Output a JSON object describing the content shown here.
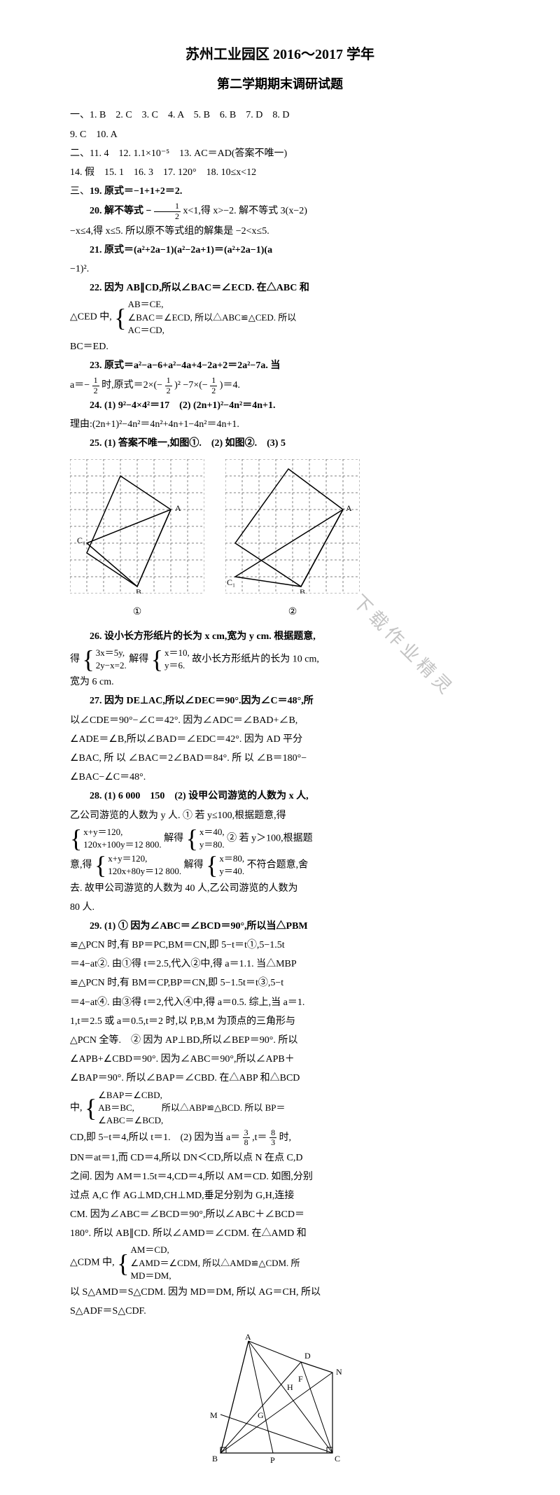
{
  "title": {
    "line1": "苏州工业园区 2016～2017 学年",
    "line2": "第二学期期末调研试题"
  },
  "watermark_text": "下载作业精灵",
  "section1": {
    "header": "一、",
    "answers": "1. B　2. C　3. C　4. A　5. B　6. B　7. D　8. D",
    "line2": "9. C　10. A"
  },
  "section2": {
    "header": "二、",
    "line1": "11. 4　12. 1.1×10⁻⁵　13. AC＝AD(答案不唯一)",
    "line2": "14. 假　15. 1　16. 3　17. 120°　18. 10≤x<12"
  },
  "section3_header": "三、",
  "q19": "19. 原式＝−1+1+2＝2.",
  "q20": {
    "line1_a": "20. 解不等式 − ",
    "line1_b": " x<1,得 x>−2. 解不等式 3(x−2)",
    "line2": "−x≤4,得 x≤5. 所以原不等式组的解集是 −2<x≤5."
  },
  "q21": {
    "line1": "21. 原式＝(a²+2a−1)(a²−2a+1)＝(a²+2a−1)(a",
    "line2": "−1)²."
  },
  "q22": {
    "line1": "22. 因为 AB∥CD,所以∠BAC＝∠ECD. 在△ABC 和",
    "brace_pre": "△CED 中,",
    "brace1": "AB＝CE,",
    "brace2": "∠BAC＝∠ECD, 所以△ABC≌△CED. 所以",
    "brace3": "AC＝CD,",
    "line3": "BC＝ED."
  },
  "q23": {
    "line1": "23. 原式＝a²−a−6+a²−4a+4−2a+2＝2a²−7a. 当",
    "line2_a": "a＝− ",
    "line2_b": " 时,原式＝2×(− ",
    "line2_c": ")² −7×(− ",
    "line2_d": ")＝4."
  },
  "q24": {
    "line1": "24. (1) 9²−4×4²＝17　(2) (2n+1)²−4n²＝4n+1.",
    "line2": "理由:(2n+1)²−4n²＝4n²+4n+1−4n²＝4n+1."
  },
  "q25": {
    "line1": "25. (1) 答案不唯一,如图①.　(2) 如图②.　(3) 5",
    "fig1_label": "①",
    "fig2_label": "②"
  },
  "q26": {
    "line1": "26. 设小长方形纸片的长为 x cm,宽为 y cm. 根据题意,",
    "line2_pre": "得",
    "brace1a": "3x＝5y,",
    "brace1b": "2y−x=2.",
    "line2_mid": " 解得",
    "brace2a": "x＝10,",
    "brace2b": "y＝6.",
    "line2_post": " 故小长方形纸片的长为 10 cm,",
    "line3": "宽为 6 cm."
  },
  "q27": {
    "line1": "27. 因为 DE⊥AC,所以∠DEC＝90°.因为∠C＝48°,所",
    "line2": "以∠CDE＝90°−∠C＝42°. 因为∠ADC＝∠BAD+∠B,",
    "line3": "∠ADE＝∠B,所以∠BAD＝∠EDC＝42°. 因为 AD 平分",
    "line4": "∠BAC, 所 以 ∠BAC＝2∠BAD＝84°. 所 以 ∠B＝180°−",
    "line5": "∠BAC−∠C＝48°."
  },
  "q28": {
    "line1": "28. (1) 6 000　150　(2) 设甲公司游览的人数为 x 人,",
    "line2": "乙公司游览的人数为 y 人. ① 若 y≤100,根据题意,得",
    "brace1a": "x+y＝120,",
    "brace1b": "120x+100y＝12 800.",
    "mid1": " 解得",
    "brace2a": "x＝40,",
    "brace2b": "y＝80.",
    "mid2": " ② 若 y＞100,根据题",
    "line3_pre": "意,得",
    "brace3a": "x+y＝120,",
    "brace3b": "120x+80y＝12 800.",
    "mid3": " 解得",
    "brace4a": "x＝80,",
    "brace4b": "y＝40.",
    "mid4": " 不符合题意,舍",
    "line4": "去. 故甲公司游览的人数为 40 人,乙公司游览的人数为",
    "line5": "80 人."
  },
  "q29": {
    "line1": "29. (1) ① 因为∠ABC＝∠BCD＝90°,所以当△PBM",
    "line2": "≌△PCN 时,有 BP＝PC,BM＝CN,即 5−t＝t①,5−1.5t",
    "line3": "＝4−at②. 由①得 t＝2.5,代入②中,得 a＝1.1. 当△MBP",
    "line4": "≌△PCN 时,有 BM＝CP,BP＝CN,即 5−1.5t＝t③,5−t",
    "line5": "＝4−at④. 由③得 t＝2,代入④中,得 a＝0.5. 综上,当 a＝1.",
    "line6": "1,t＝2.5 或 a＝0.5,t＝2 时,以 P,B,M 为顶点的三角形与",
    "line7": "△PCN 全等.　② 因为 AP⊥BD,所以∠BEP＝90°. 所以",
    "line8": "∠APB+∠CBD＝90°. 因为∠ABC＝90°,所以∠APB＋",
    "line9": "∠BAP＝90°. 所以∠BAP＝∠CBD. 在△ABP 和△BCD",
    "line10_pre": "中,",
    "brace1": "∠BAP＝∠CBD,",
    "brace2": "AB＝BC,　　　所以△ABP≌△BCD. 所以 BP＝",
    "brace3": "∠ABC＝∠BCD,",
    "line11": "CD,即 5−t＝4,所以 t＝1.　(2) 因为当 a＝",
    "frac_3_8_num": "3",
    "frac_3_8_den": "8",
    "line11b": ",t＝",
    "frac_8_3_num": "8",
    "frac_8_3_den": "3",
    "line11c": " 时,",
    "line12": "DN＝at＝1,而 CD＝4,所以 DN＜CD,所以点 N 在点 C,D",
    "line13": "之间. 因为 AM＝1.5t＝4,CD＝4,所以 AM＝CD. 如图,分别",
    "line14": "过点 A,C 作 AG⊥MD,CH⊥MD,垂足分别为 G,H,连接",
    "line15": "CM. 因为∠ABC＝∠BCD＝90°,所以∠ABC＋∠BCD＝",
    "line16": "180°. 所以 AB∥CD. 所以∠AMD＝∠CDM. 在△AMD 和",
    "line17_pre": "△CDM 中,",
    "brace4": "AM＝CD,",
    "brace5": "∠AMD＝∠CDM, 所以△AMD≌△CDM. 所",
    "brace6": "MD＝DM,",
    "line18": "以 S△AMD＝S△CDM. 因为 MD＝DM, 所以 AG＝CH, 所以",
    "line19": "S△ADF＝S△CDF."
  },
  "fractions": {
    "half_num": "1",
    "half_den": "2"
  },
  "fig1": {
    "grid_size": 8,
    "cell": 24,
    "stroke": "#000000",
    "dash": "3,3",
    "points": {
      "A": [
        144,
        72
      ],
      "B": [
        96,
        182
      ],
      "C": [
        24,
        120
      ]
    },
    "labels": {
      "A": "A",
      "B": "B₁",
      "C": "C₁"
    }
  },
  "fig2": {
    "grid_size": 8,
    "cell": 24,
    "stroke": "#000000",
    "dash": "3,3",
    "points": {
      "A": [
        168,
        72
      ],
      "B": [
        108,
        182
      ],
      "C": [
        14,
        168
      ]
    },
    "labels": {
      "A": "A",
      "B": "B₁",
      "C": "C₁"
    }
  },
  "fig3": {
    "size": 180,
    "stroke": "#000000",
    "labels": {
      "A": "A",
      "B": "B",
      "C": "C",
      "D": "D",
      "M": "M",
      "N": "N",
      "P": "P",
      "G": "G",
      "H": "H",
      "F": "F"
    }
  }
}
